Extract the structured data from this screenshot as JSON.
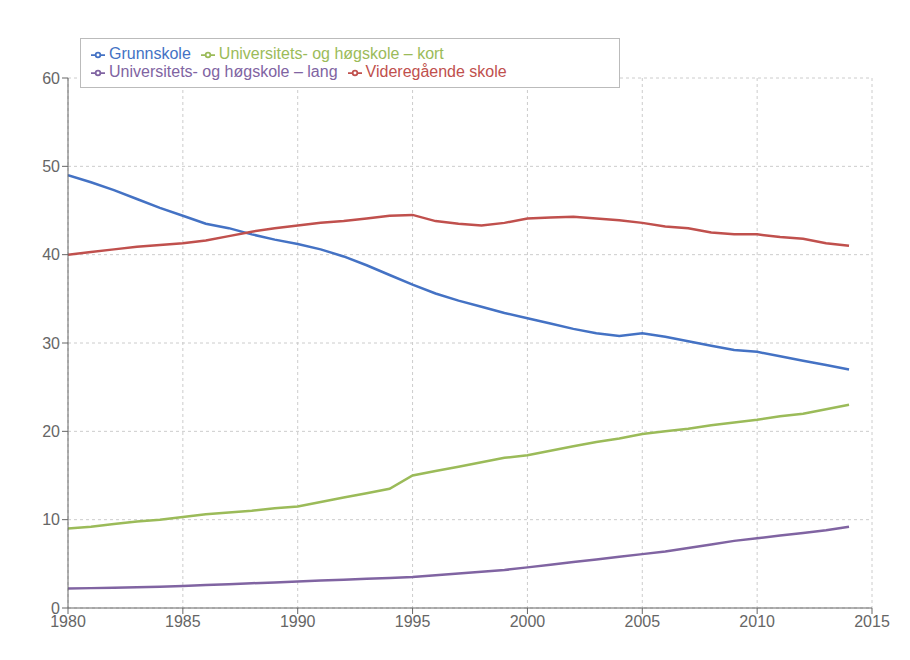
{
  "chart_data": {
    "type": "line",
    "x": [
      1980,
      1981,
      1982,
      1983,
      1984,
      1985,
      1986,
      1987,
      1988,
      1989,
      1990,
      1991,
      1992,
      1993,
      1994,
      1995,
      1996,
      1997,
      1998,
      1999,
      2000,
      2001,
      2002,
      2003,
      2004,
      2005,
      2006,
      2007,
      2008,
      2009,
      2010,
      2011,
      2012,
      2013,
      2014
    ],
    "series": [
      {
        "name": "Grunnskole",
        "color": "#4472C4",
        "values": [
          49.0,
          48.2,
          47.3,
          46.3,
          45.3,
          44.4,
          43.5,
          43.0,
          42.3,
          41.7,
          41.2,
          40.6,
          39.8,
          38.8,
          37.7,
          36.6,
          35.6,
          34.8,
          34.1,
          33.4,
          32.8,
          32.2,
          31.6,
          31.1,
          30.8,
          31.1,
          30.7,
          30.2,
          29.7,
          29.2,
          29.0,
          28.5,
          28.0,
          27.5,
          27.0
        ]
      },
      {
        "name": "Videregående skole",
        "color": "#C0504D",
        "values": [
          40.0,
          40.3,
          40.6,
          40.9,
          41.1,
          41.3,
          41.6,
          42.1,
          42.6,
          43.0,
          43.3,
          43.6,
          43.8,
          44.1,
          44.4,
          44.5,
          43.8,
          43.5,
          43.3,
          43.6,
          44.1,
          44.2,
          44.3,
          44.1,
          43.9,
          43.6,
          43.2,
          43.0,
          42.5,
          42.3,
          42.3,
          42.0,
          41.8,
          41.3,
          41.0
        ]
      },
      {
        "name": "Universitets- og høgskole – kort",
        "color": "#9BBB59",
        "values": [
          9.0,
          9.2,
          9.5,
          9.8,
          10.0,
          10.3,
          10.6,
          10.8,
          11.0,
          11.3,
          11.5,
          12.0,
          12.5,
          13.0,
          13.5,
          15.0,
          15.5,
          16.0,
          16.5,
          17.0,
          17.3,
          17.8,
          18.3,
          18.8,
          19.2,
          19.7,
          20.0,
          20.3,
          20.7,
          21.0,
          21.3,
          21.7,
          22.0,
          22.5,
          23.0
        ]
      },
      {
        "name": "Universitets- og høgskole – lang",
        "color": "#8064A2",
        "values": [
          2.2,
          2.25,
          2.3,
          2.35,
          2.4,
          2.5,
          2.6,
          2.7,
          2.8,
          2.9,
          3.0,
          3.1,
          3.2,
          3.3,
          3.4,
          3.5,
          3.7,
          3.9,
          4.1,
          4.3,
          4.6,
          4.9,
          5.2,
          5.5,
          5.8,
          6.1,
          6.4,
          6.8,
          7.2,
          7.6,
          7.9,
          8.2,
          8.5,
          8.8,
          9.2
        ]
      }
    ],
    "xlim": [
      1980,
      2015
    ],
    "xticks": [
      1980,
      1985,
      1990,
      1995,
      2000,
      2005,
      2010,
      2015
    ],
    "ylim": [
      0,
      60
    ],
    "yticks": [
      0,
      10,
      20,
      30,
      40,
      50,
      60
    ],
    "grid": true,
    "legend": "upper left"
  }
}
